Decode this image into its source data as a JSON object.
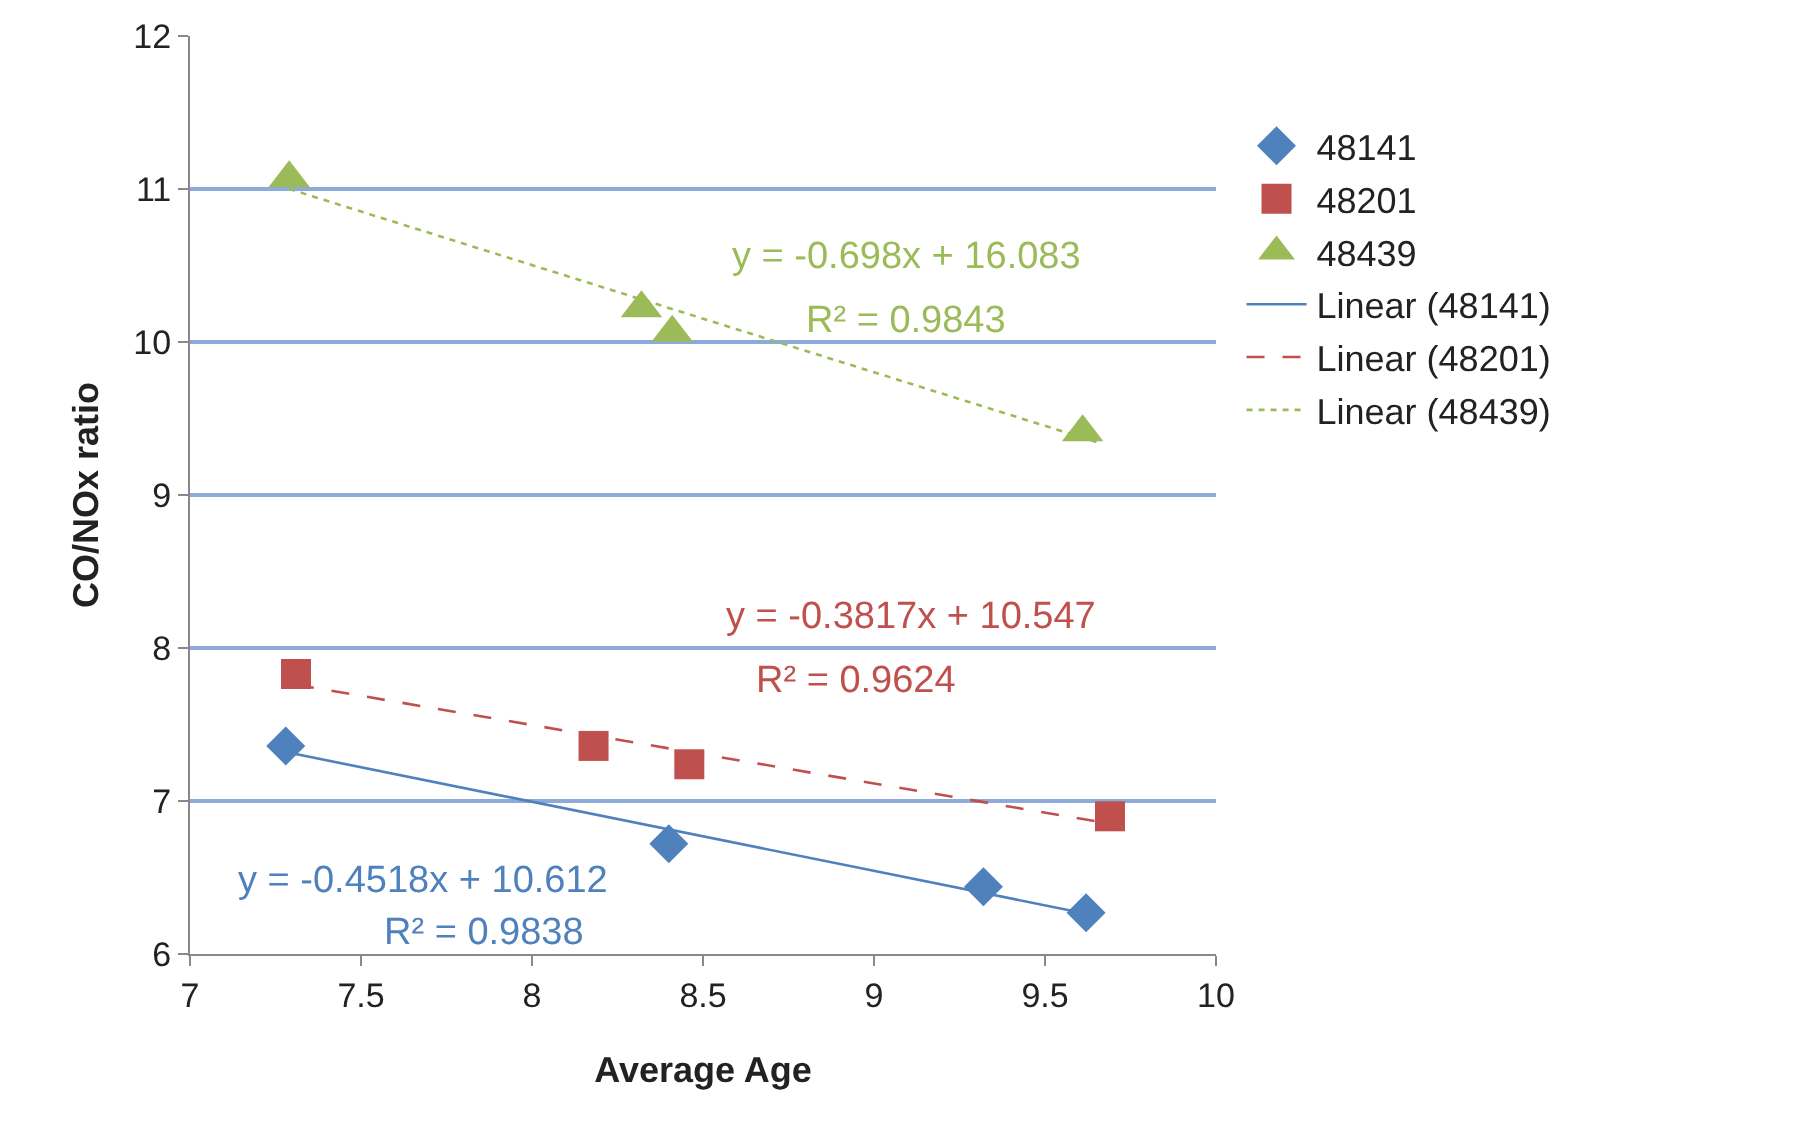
{
  "chart_data": {
    "type": "scatter",
    "xlabel": "Average Age",
    "ylabel": "CO/NOx ratio",
    "xlim": [
      7,
      10
    ],
    "xticks": [
      7,
      7.5,
      8,
      8.5,
      9,
      9.5,
      10
    ],
    "ylim": [
      6,
      12
    ],
    "yticks": [
      6,
      7,
      8,
      9,
      10,
      11,
      12
    ],
    "grid": "y",
    "legend": "right",
    "series": [
      {
        "name": "48141",
        "color": "#4f81bd",
        "marker": "diamond",
        "x": [
          7.28,
          8.4,
          9.32,
          9.62
        ],
        "values": [
          7.36,
          6.72,
          6.44,
          6.27
        ]
      },
      {
        "name": "48201",
        "color": "#c0504d",
        "marker": "square",
        "x": [
          7.31,
          8.18,
          8.46,
          9.69
        ],
        "values": [
          7.83,
          7.36,
          7.24,
          6.9
        ]
      },
      {
        "name": "48439",
        "color": "#9bbb59",
        "marker": "triangle",
        "x": [
          7.29,
          8.32,
          8.41,
          9.61
        ],
        "values": [
          11.07,
          10.22,
          10.06,
          9.41
        ]
      },
      {
        "name": "Linear (48141)",
        "type": "line",
        "color": "#4f81bd",
        "line_style": "solid",
        "marker": "none",
        "x": [
          7.28,
          9.65
        ],
        "values": [
          7.32,
          6.25
        ]
      },
      {
        "name": "Linear (48201)",
        "type": "line",
        "color": "#c0504d",
        "line_style": "dashed",
        "marker": "none",
        "x": [
          7.31,
          9.72
        ],
        "values": [
          7.76,
          6.84
        ]
      },
      {
        "name": "Linear (48439)",
        "type": "line",
        "color": "#9bbb59",
        "line_style": "dotted",
        "marker": "none",
        "x": [
          7.29,
          9.66
        ],
        "values": [
          11.0,
          9.34
        ]
      }
    ],
    "annotations": [
      "y = -0.698x + 16.083",
      "R² = 0.9843",
      "y = -0.3817x + 10.547",
      "R² = 0.9624",
      "y = -0.4518x + 10.612",
      "R² = 0.9838"
    ]
  }
}
